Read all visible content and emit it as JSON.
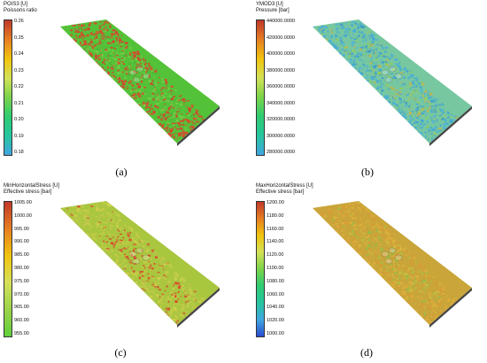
{
  "panels": [
    {
      "id": "a",
      "title": "POIS3 [U]",
      "subtitle": "Poissons ratio",
      "ticks": [
        "0.26",
        "0.25",
        "0.24",
        "0.23",
        "0.22",
        "0.21",
        "0.20",
        "0.19",
        "0.18"
      ],
      "gradient": [
        "#c0392b",
        "#e67e22",
        "#f1c40f",
        "#d4e157",
        "#7bd44a",
        "#2ecc71",
        "#26c6a0",
        "#40a6e0"
      ],
      "surface_palette": [
        "#d94b2b",
        "#e03a2f",
        "#54c238",
        "#6fd247",
        "#4bb33a",
        "#7ecf4a"
      ],
      "caption": "(a)"
    },
    {
      "id": "b",
      "title": "YMOD3 [U]",
      "subtitle": "Pressure [bar]",
      "ticks": [
        "440000.0000",
        "420000.0000",
        "400000.0000",
        "380000.0000",
        "360000.0000",
        "340000.0000",
        "320000.0000",
        "300000.0000",
        "280000.0000"
      ],
      "gradient": [
        "#c0392b",
        "#e67e22",
        "#f1c40f",
        "#d4e157",
        "#7bd44a",
        "#2ecc71",
        "#26c6a0",
        "#40a6e0"
      ],
      "surface_palette": [
        "#4fb3d8",
        "#3fa6d6",
        "#77c7a0",
        "#9acd4f",
        "#c6b54a",
        "#3d98c9"
      ],
      "caption": "(b)"
    },
    {
      "id": "c",
      "title": "MinHorizontalStress [U]",
      "subtitle": "Effective stress [bar]",
      "ticks": [
        "1005.00",
        "1000.00",
        "995.00",
        "990.00",
        "985.00",
        "980.00",
        "975.00",
        "970.00",
        "965.00",
        "960.00",
        "955.00"
      ],
      "gradient": [
        "#c0392b",
        "#e67e22",
        "#f1c40f",
        "#d4e157",
        "#9bd34a",
        "#5fcf3a"
      ],
      "surface_palette": [
        "#b9c64a",
        "#cfd04c",
        "#a9c63f",
        "#d84a2b",
        "#e0402d",
        "#c6cc46"
      ],
      "caption": "(c)"
    },
    {
      "id": "d",
      "title": "MaxHorizontalStress [U]",
      "subtitle": "Effective stress [bar]",
      "ticks": [
        "1200.00",
        "1180.00",
        "1160.00",
        "1140.00",
        "1120.00",
        "1100.00",
        "1080.00",
        "1060.00",
        "1040.00",
        "1020.00",
        "1000.00"
      ],
      "gradient": [
        "#c0392b",
        "#e67e22",
        "#f1c40f",
        "#d4e157",
        "#7bd44a",
        "#2ecc71",
        "#26c6a0",
        "#40a6e0",
        "#2a4bd1"
      ],
      "surface_palette": [
        "#d99a36",
        "#e2b23b",
        "#c9a53a",
        "#a9c042",
        "#d0bc43",
        "#8fbf48"
      ],
      "caption": "(d)"
    }
  ]
}
